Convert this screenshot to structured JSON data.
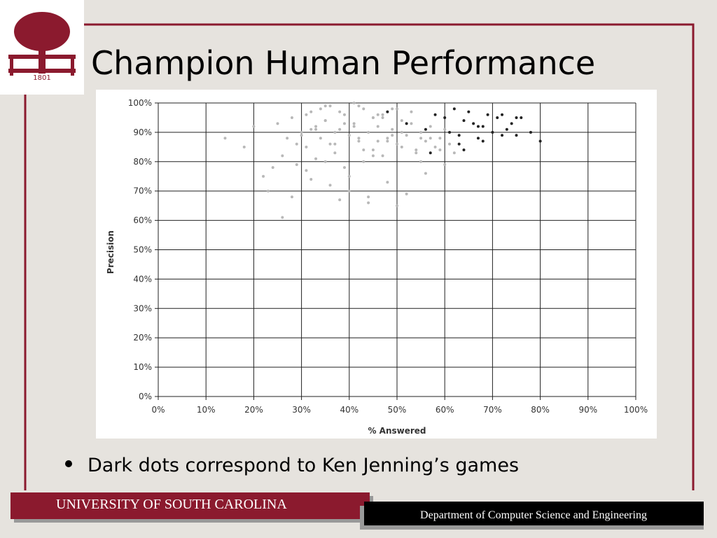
{
  "slide": {
    "title": "Champion Human Performance",
    "logo_year": "1801",
    "bullet": "Dark dots correspond to Ken Jenning’s games",
    "footer_left": "UNIVERSITY OF SOUTH CAROLINA",
    "footer_right": "Department of Computer Science and Engineering"
  },
  "chart_data": {
    "type": "scatter",
    "xlabel": "% Answered",
    "ylabel": "Precision",
    "grid": true,
    "xlim": [
      0,
      100
    ],
    "ylim": [
      0,
      100
    ],
    "xticks": [
      {
        "value": 0,
        "label": "0%"
      },
      {
        "value": 10,
        "label": "10%"
      },
      {
        "value": 20,
        "label": "20%"
      },
      {
        "value": 30,
        "label": "30%"
      },
      {
        "value": 40,
        "label": "40%"
      },
      {
        "value": 50,
        "label": "50%"
      },
      {
        "value": 60,
        "label": "60%"
      },
      {
        "value": 70,
        "label": "70%"
      },
      {
        "value": 80,
        "label": "80%"
      },
      {
        "value": 90,
        "label": "90%"
      },
      {
        "value": 100,
        "label": "100%"
      }
    ],
    "yticks": [
      {
        "value": 0,
        "label": "0%"
      },
      {
        "value": 10,
        "label": "10%"
      },
      {
        "value": 20,
        "label": "20%"
      },
      {
        "value": 30,
        "label": "30%"
      },
      {
        "value": 40,
        "label": "40%"
      },
      {
        "value": 50,
        "label": "50%"
      },
      {
        "value": 60,
        "label": "60%"
      },
      {
        "value": 70,
        "label": "70%"
      },
      {
        "value": 80,
        "label": "80%"
      },
      {
        "value": 90,
        "label": "90%"
      },
      {
        "value": 100,
        "label": "100%"
      }
    ],
    "series": [
      {
        "color": "#b8b8b8",
        "x": [
          25,
          27,
          28,
          30,
          31,
          32,
          33,
          34,
          35,
          36,
          37,
          38,
          39,
          40,
          41,
          42,
          43,
          44,
          45,
          46,
          47,
          48,
          49,
          50,
          51,
          52,
          53,
          54,
          55,
          56,
          57,
          58,
          59,
          60,
          61,
          62,
          26,
          29,
          31,
          33,
          35,
          37,
          39,
          41,
          43,
          45,
          47,
          49,
          51,
          53,
          55,
          57,
          59,
          24,
          22,
          20,
          18,
          14,
          23,
          28,
          32,
          36,
          40,
          44,
          48,
          52,
          56,
          60,
          34,
          38,
          42,
          46,
          50,
          30,
          33,
          36,
          39,
          42,
          45,
          48,
          51,
          54,
          31,
          35,
          40,
          45,
          26,
          44,
          38,
          50,
          35,
          41,
          47,
          29,
          37,
          43,
          49,
          55,
          32,
          46
        ],
        "values": [
          93,
          88,
          95,
          90,
          85,
          97,
          92,
          88,
          94,
          99,
          86,
          91,
          96,
          89,
          93,
          87,
          98,
          90,
          84,
          92,
          95,
          88,
          91,
          86,
          94,
          89,
          97,
          83,
          90,
          87,
          92,
          85,
          88,
          91,
          86,
          83,
          82,
          79,
          96,
          81,
          99,
          83,
          78,
          100,
          80,
          95,
          82,
          98,
          85,
          93,
          80,
          88,
          84,
          78,
          75,
          92,
          85,
          88,
          70,
          68,
          74,
          72,
          70,
          68,
          73,
          69,
          76,
          79,
          98,
          97,
          99,
          96,
          98,
          89,
          91,
          86,
          93,
          88,
          95,
          87,
          90,
          84,
          77,
          80,
          75,
          82,
          61,
          66,
          67,
          65,
          94,
          92,
          96,
          86,
          90,
          84,
          89,
          88,
          91,
          87
        ]
      },
      {
        "color": "#222222",
        "x": [
          48,
          52,
          56,
          58,
          60,
          61,
          62,
          63,
          64,
          65,
          66,
          67,
          68,
          69,
          70,
          71,
          72,
          73,
          74,
          75,
          76,
          78,
          80,
          57,
          63,
          67,
          72,
          75,
          64,
          68
        ],
        "values": [
          97,
          93,
          91,
          96,
          95,
          90,
          98,
          89,
          84,
          97,
          93,
          88,
          92,
          96,
          90,
          95,
          96,
          91,
          93,
          95,
          95,
          90,
          87,
          83,
          86,
          92,
          89,
          89,
          94,
          87
        ]
      }
    ]
  }
}
